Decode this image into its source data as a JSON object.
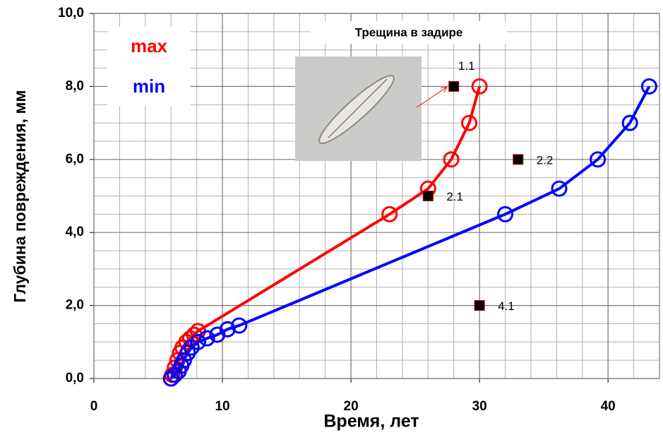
{
  "chart_data": {
    "type": "line",
    "xlabel": "Время, лет",
    "ylabel": "Глубина повреждения, мм",
    "xlim": [
      0,
      44
    ],
    "ylim": [
      0,
      10
    ],
    "xticks": [
      0,
      10,
      20,
      30,
      40
    ],
    "yticks": [
      {
        "value": 0,
        "label": "0,0"
      },
      {
        "value": 2,
        "label": "2,0"
      },
      {
        "value": 4,
        "label": "4,0"
      },
      {
        "value": 6,
        "label": "6,0"
      },
      {
        "value": 8,
        "label": "8,0"
      },
      {
        "value": 10,
        "label": "10,0"
      }
    ],
    "grid": true,
    "legend": "upper left",
    "series": [
      {
        "name": "max",
        "color": "#ff0000",
        "x": [
          6.0,
          6.1,
          6.3,
          6.5,
          6.7,
          6.9,
          7.2,
          7.5,
          7.8,
          8.1,
          23.0,
          26.0,
          27.8,
          29.2,
          30.0
        ],
        "values": [
          0.0,
          0.1,
          0.3,
          0.5,
          0.7,
          0.85,
          1.0,
          1.1,
          1.2,
          1.3,
          4.5,
          5.2,
          6.0,
          7.0,
          8.0
        ]
      },
      {
        "name": "min",
        "color": "#0000ff",
        "x": [
          6.0,
          6.3,
          6.6,
          6.8,
          7.0,
          7.3,
          7.6,
          8.1,
          8.8,
          9.6,
          10.4,
          11.3,
          32.0,
          36.2,
          39.2,
          41.7,
          43.2
        ],
        "values": [
          0.0,
          0.1,
          0.2,
          0.35,
          0.5,
          0.7,
          0.85,
          1.0,
          1.1,
          1.2,
          1.35,
          1.45,
          4.5,
          5.2,
          6.0,
          7.0,
          8.0
        ]
      }
    ],
    "points": [
      {
        "label": "1.1",
        "x": 28,
        "y": 8
      },
      {
        "label": "2.1",
        "x": 26,
        "y": 5
      },
      {
        "label": "2.2",
        "x": 33,
        "y": 6
      },
      {
        "label": "4.1",
        "x": 30,
        "y": 2
      }
    ],
    "inset_title": "Трещина в задире"
  }
}
